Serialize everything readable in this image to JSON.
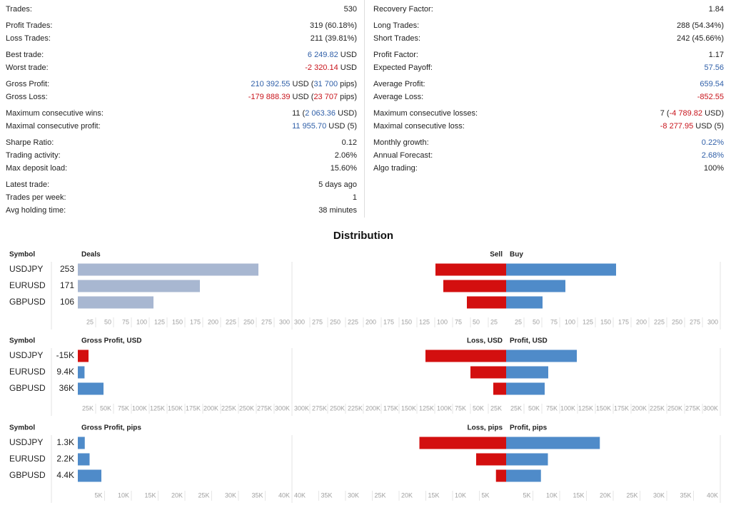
{
  "stats": {
    "columns": [
      {
        "groups": [
          {
            "rows": [
              {
                "label": "Trades:",
                "value": [
                  "530"
                ]
              }
            ]
          },
          {
            "rows": [
              {
                "label": "Profit Trades:",
                "value": [
                  "319 (60.18%)"
                ]
              },
              {
                "label": "Loss Trades:",
                "value": [
                  "211 (39.81%)"
                ]
              }
            ]
          },
          {
            "rows": [
              {
                "label": "Best trade:",
                "value": [
                  {
                    "text": "6 249.82",
                    "tone": "positive"
                  },
                  " USD"
                ]
              },
              {
                "label": "Worst trade:",
                "value": [
                  {
                    "text": "-2 320.14",
                    "tone": "negative"
                  },
                  " USD"
                ]
              }
            ]
          },
          {
            "rows": [
              {
                "label": "Gross Profit:",
                "value": [
                  {
                    "text": "210 392.55",
                    "tone": "positive"
                  },
                  " USD (",
                  {
                    "text": "31 700",
                    "tone": "positive"
                  },
                  " pips)"
                ]
              },
              {
                "label": "Gross Loss:",
                "value": [
                  {
                    "text": "-179 888.39",
                    "tone": "negative"
                  },
                  " USD (",
                  {
                    "text": "23 707",
                    "tone": "negative"
                  },
                  " pips)"
                ]
              }
            ]
          },
          {
            "rows": [
              {
                "label": "Maximum consecutive wins:",
                "value": [
                  "11 (",
                  {
                    "text": "2 063.36",
                    "tone": "positive"
                  },
                  " USD)"
                ]
              },
              {
                "label": "Maximal consecutive profit:",
                "value": [
                  {
                    "text": "11 955.70",
                    "tone": "positive"
                  },
                  " USD (5)"
                ]
              }
            ]
          },
          {
            "rows": [
              {
                "label": "Sharpe Ratio:",
                "value": [
                  "0.12"
                ]
              },
              {
                "label": "Trading activity:",
                "value": [
                  "2.06%"
                ]
              },
              {
                "label": "Max deposit load:",
                "value": [
                  "15.60%"
                ]
              }
            ]
          },
          {
            "rows": [
              {
                "label": "Latest trade:",
                "value": [
                  "5 days ago"
                ]
              },
              {
                "label": "Trades per week:",
                "value": [
                  "1"
                ]
              },
              {
                "label": "Avg holding time:",
                "value": [
                  "38 minutes"
                ]
              }
            ]
          }
        ]
      },
      {
        "groups": [
          {
            "rows": [
              {
                "label": "Recovery Factor:",
                "value": [
                  "1.84"
                ]
              }
            ]
          },
          {
            "rows": [
              {
                "label": "Long Trades:",
                "value": [
                  "288 (54.34%)"
                ]
              },
              {
                "label": "Short Trades:",
                "value": [
                  "242 (45.66%)"
                ]
              }
            ]
          },
          {
            "rows": [
              {
                "label": "Profit Factor:",
                "value": [
                  "1.17"
                ]
              },
              {
                "label": "Expected Payoff:",
                "value": [
                  {
                    "text": "57.56",
                    "tone": "positive"
                  }
                ]
              }
            ]
          },
          {
            "rows": [
              {
                "label": "Average Profit:",
                "value": [
                  {
                    "text": "659.54",
                    "tone": "positive"
                  }
                ]
              },
              {
                "label": "Average Loss:",
                "value": [
                  {
                    "text": "-852.55",
                    "tone": "negative"
                  }
                ]
              }
            ]
          },
          {
            "rows": [
              {
                "label": "Maximum consecutive losses:",
                "value": [
                  "7 (",
                  {
                    "text": "-4 789.82",
                    "tone": "negative"
                  },
                  " USD)"
                ]
              },
              {
                "label": "Maximal consecutive loss:",
                "value": [
                  {
                    "text": "-8 277.95",
                    "tone": "negative"
                  },
                  " USD (5)"
                ]
              }
            ]
          },
          {
            "rows": [
              {
                "label": "Monthly growth:",
                "value": [
                  {
                    "text": "0.22%",
                    "tone": "positive"
                  }
                ]
              },
              {
                "label": "Annual Forecast:",
                "value": [
                  {
                    "text": "2.68%",
                    "tone": "positive"
                  }
                ]
              },
              {
                "label": "Algo trading:",
                "value": [
                  "100%"
                ]
              }
            ]
          }
        ]
      }
    ]
  },
  "distribution": {
    "title": "Distribution",
    "colors": {
      "positive": "#4f8bc9",
      "negative": "#d30f0f"
    },
    "panels": [
      {
        "symbol_header": "Symbol",
        "left_header": "Deals",
        "sell_header": "Sell",
        "buy_header": "Buy",
        "bar_color": "#a8b7d1",
        "xlim": [
          0,
          300
        ],
        "xticks": [
          25,
          50,
          75,
          100,
          125,
          150,
          175,
          200,
          225,
          250,
          275,
          300
        ],
        "rows": [
          {
            "symbol": "USDJPY",
            "value": 253,
            "sell": 99,
            "buy": 154
          },
          {
            "symbol": "EURUSD",
            "value": 171,
            "sell": 88,
            "buy": 83
          },
          {
            "symbol": "GBPUSD",
            "value": 106,
            "sell": 55,
            "buy": 51
          }
        ]
      },
      {
        "symbol_header": "Symbol",
        "left_header": "Gross Profit, USD",
        "sell_header": "Loss, USD",
        "buy_header": "Profit, USD",
        "xlim": [
          0,
          300000
        ],
        "xticks": [
          {
            "value": 25000,
            "label": "25K"
          },
          {
            "value": 50000,
            "label": "50K"
          },
          {
            "value": 75000,
            "label": "75K"
          },
          {
            "value": 100000,
            "label": "100K"
          },
          {
            "value": 125000,
            "label": "125K"
          },
          {
            "value": 150000,
            "label": "150K"
          },
          {
            "value": 175000,
            "label": "175K"
          },
          {
            "value": 200000,
            "label": "200K"
          },
          {
            "value": 225000,
            "label": "225K"
          },
          {
            "value": 250000,
            "label": "250K"
          },
          {
            "value": 275000,
            "label": "275K"
          },
          {
            "value": 300000,
            "label": "300K"
          }
        ],
        "rows": [
          {
            "symbol": "USDJPY",
            "value": -15000,
            "value_label": "-15K",
            "sell": 113000,
            "buy": 99000
          },
          {
            "symbol": "EURUSD",
            "value": 9400,
            "value_label": "9.4K",
            "sell": 50000,
            "buy": 59000
          },
          {
            "symbol": "GBPUSD",
            "value": 36000,
            "value_label": "36K",
            "sell": 18000,
            "buy": 54000
          }
        ]
      },
      {
        "symbol_header": "Symbol",
        "left_header": "Gross Profit, pips",
        "sell_header": "Loss, pips",
        "buy_header": "Profit, pips",
        "xlim": [
          0,
          40000
        ],
        "xticks": [
          {
            "value": 5000,
            "label": "5K"
          },
          {
            "value": 10000,
            "label": "10K"
          },
          {
            "value": 15000,
            "label": "15K"
          },
          {
            "value": 20000,
            "label": "20K"
          },
          {
            "value": 25000,
            "label": "25K"
          },
          {
            "value": 30000,
            "label": "30K"
          },
          {
            "value": 35000,
            "label": "35K"
          },
          {
            "value": 40000,
            "label": "40K"
          }
        ],
        "rows": [
          {
            "symbol": "USDJPY",
            "value": 1300,
            "value_label": "1.3K",
            "sell": 16200,
            "buy": 17500
          },
          {
            "symbol": "EURUSD",
            "value": 2200,
            "value_label": "2.2K",
            "sell": 5600,
            "buy": 7800
          },
          {
            "symbol": "GBPUSD",
            "value": 4400,
            "value_label": "4.4K",
            "sell": 1900,
            "buy": 6500
          }
        ]
      }
    ]
  }
}
